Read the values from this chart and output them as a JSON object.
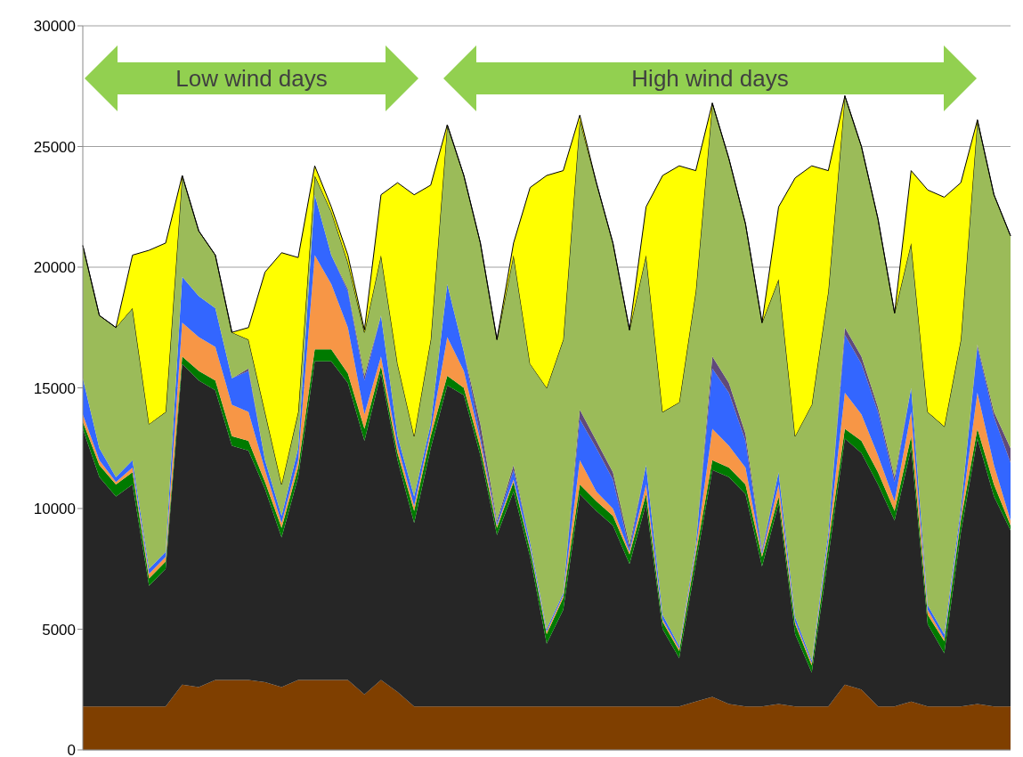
{
  "chart_data": {
    "type": "area",
    "stacked": true,
    "grid": "y",
    "tick_labels": "y",
    "categories": [
      null,
      null,
      null,
      null,
      null,
      null,
      null,
      null,
      null,
      null,
      null,
      null,
      null,
      null,
      null,
      null,
      null,
      null,
      null,
      null,
      null,
      null,
      null,
      null,
      null,
      null,
      null,
      null,
      null,
      null,
      null,
      null,
      null,
      null,
      null,
      null,
      null,
      null,
      null,
      null,
      null,
      null,
      null,
      null,
      null,
      null,
      null,
      null,
      null,
      null,
      null,
      null,
      null,
      null,
      null,
      null,
      null
    ],
    "ylim": [
      0,
      30000
    ],
    "yticks": [
      0,
      5000,
      10000,
      15000,
      20000,
      25000,
      30000
    ],
    "annotations": [
      "Low wind days",
      "High wind days"
    ],
    "series": [
      {
        "color": "#7f3f00",
        "values": [
          1800,
          1800,
          1800,
          1800,
          1800,
          1800,
          2700,
          2600,
          2900,
          2900,
          2900,
          2800,
          2600,
          2900,
          2900,
          2900,
          2900,
          2300,
          2900,
          2400,
          1800,
          1800,
          1800,
          1800,
          1800,
          1800,
          1800,
          1800,
          1800,
          1800,
          1800,
          1800,
          1800,
          1800,
          1800,
          1800,
          1800,
          2000,
          2200,
          1900,
          1800,
          1800,
          1900,
          1800,
          1800,
          1800,
          2700,
          2500,
          1800,
          1800,
          2000,
          1800,
          1800,
          1800,
          1900,
          1800,
          1800
        ]
      },
      {
        "color": "#262626",
        "values": [
          11500,
          9500,
          8700,
          9200,
          5000,
          5700,
          13300,
          12700,
          12000,
          9700,
          9500,
          8000,
          6200,
          8400,
          13200,
          13200,
          12300,
          10500,
          12700,
          9600,
          7600,
          10700,
          13300,
          12900,
          10400,
          7100,
          8900,
          6200,
          2600,
          4000,
          8800,
          8100,
          7500,
          5900,
          8400,
          3200,
          2000,
          5700,
          9400,
          9400,
          8800,
          5800,
          8300,
          3000,
          1400,
          6200,
          10200,
          9800,
          9200,
          7700,
          10500,
          3400,
          2200,
          7200,
          11000,
          8700,
          7300
        ]
      },
      {
        "color": "#007a00",
        "values": [
          300,
          500,
          500,
          500,
          300,
          300,
          300,
          400,
          400,
          400,
          400,
          300,
          400,
          400,
          500,
          500,
          400,
          500,
          300,
          300,
          500,
          500,
          400,
          300,
          300,
          300,
          400,
          300,
          400,
          500,
          400,
          400,
          400,
          400,
          400,
          300,
          300,
          400,
          400,
          400,
          400,
          400,
          300,
          400,
          300,
          500,
          400,
          500,
          500,
          400,
          500,
          400,
          500,
          500,
          400,
          500,
          200
        ]
      },
      {
        "color": "#f79646",
        "values": [
          300,
          200,
          100,
          200,
          200,
          200,
          1400,
          1400,
          1400,
          1300,
          1200,
          500,
          200,
          300,
          3900,
          2700,
          1900,
          600,
          400,
          300,
          200,
          200,
          1600,
          700,
          300,
          100,
          100,
          100,
          100,
          100,
          1000,
          400,
          300,
          100,
          400,
          100,
          100,
          200,
          1300,
          900,
          700,
          100,
          500,
          100,
          100,
          200,
          1500,
          1100,
          700,
          400,
          1000,
          200,
          100,
          200,
          1500,
          800,
          200
        ]
      },
      {
        "color": "#3366ff",
        "values": [
          1500,
          500,
          200,
          300,
          200,
          200,
          1900,
          1700,
          1600,
          1100,
          1700,
          400,
          300,
          500,
          2500,
          1200,
          1500,
          1400,
          1700,
          400,
          400,
          300,
          2200,
          800,
          200,
          100,
          400,
          200,
          100,
          100,
          1700,
          1800,
          1200,
          100,
          800,
          200,
          100,
          200,
          2500,
          2200,
          1100,
          100,
          500,
          200,
          100,
          300,
          2400,
          2100,
          1800,
          800,
          1000,
          200,
          200,
          300,
          1900,
          2000,
          2400
        ]
      },
      {
        "color": "#604a7b",
        "values": [
          0,
          0,
          0,
          0,
          0,
          0,
          0,
          0,
          0,
          0,
          100,
          0,
          0,
          0,
          0,
          0,
          100,
          200,
          0,
          0,
          0,
          0,
          0,
          0,
          500,
          100,
          200,
          0,
          0,
          0,
          400,
          300,
          300,
          200,
          0,
          0,
          0,
          0,
          500,
          400,
          300,
          100,
          0,
          0,
          0,
          0,
          300,
          300,
          200,
          200,
          0,
          0,
          0,
          0,
          100,
          200,
          600
        ]
      },
      {
        "color": "#9bbb59",
        "values": [
          5500,
          5500,
          6200,
          6300,
          6000,
          5800,
          4200,
          2700,
          2200,
          1900,
          1200,
          2000,
          1300,
          1500,
          800,
          1800,
          1100,
          1800,
          2500,
          3000,
          2500,
          3500,
          6600,
          7300,
          7500,
          7500,
          8700,
          7400,
          10000,
          10500,
          12000,
          10700,
          9500,
          8900,
          8700,
          8400,
          10100,
          10500,
          10500,
          9300,
          8700,
          9400,
          8000,
          7500,
          10600,
          10000,
          9600,
          8700,
          7800,
          6800,
          6000,
          8000,
          8600,
          7000,
          9300,
          9000,
          8800
        ]
      },
      {
        "color": "#ffff00",
        "values": [
          0,
          0,
          0,
          2200,
          7200,
          7000,
          0,
          0,
          0,
          0,
          500,
          5800,
          9600,
          6400,
          400,
          200,
          300,
          100,
          2500,
          7500,
          10000,
          6400,
          0,
          0,
          0,
          0,
          500,
          7300,
          8800,
          7000,
          200,
          0,
          0,
          0,
          2000,
          9800,
          9800,
          5000,
          0,
          0,
          0,
          0,
          3000,
          10700,
          9900,
          5000,
          0,
          0,
          0,
          0,
          3000,
          9200,
          9500,
          6500,
          0,
          0,
          0
        ]
      }
    ]
  }
}
